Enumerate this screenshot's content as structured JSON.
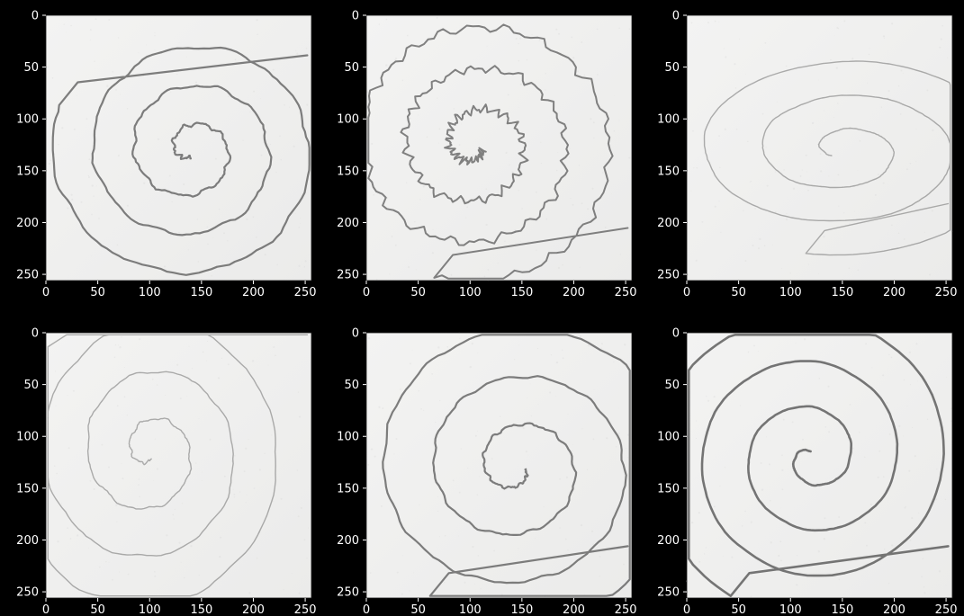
{
  "figure": {
    "background": "#000000",
    "text_color": "#ffffff",
    "paper_color": "#f0f0ef",
    "pencil_color": "#555555"
  },
  "panels": [
    {
      "name": "spiral-panel-1",
      "xticks": [
        "0",
        "50",
        "100",
        "150",
        "200",
        "250"
      ],
      "yticks": [
        "0",
        "50",
        "100",
        "150",
        "200",
        "250"
      ],
      "image_size": [
        256,
        256
      ],
      "content": "hand-drawn spiral (irregular, dark pencil)"
    },
    {
      "name": "spiral-panel-2",
      "xticks": [
        "0",
        "50",
        "100",
        "150",
        "200",
        "250"
      ],
      "yticks": [
        "0",
        "50",
        "100",
        "150",
        "200",
        "250"
      ],
      "image_size": [
        256,
        256
      ],
      "content": "hand-drawn spiral (jagged, tremulous)"
    },
    {
      "name": "spiral-panel-3",
      "xticks": [
        "0",
        "50",
        "100",
        "150",
        "200",
        "250"
      ],
      "yticks": [
        "0",
        "50",
        "100",
        "150",
        "200",
        "250"
      ],
      "image_size": [
        256,
        256
      ],
      "content": "hand-drawn spiral (smooth, light pencil)"
    },
    {
      "name": "spiral-panel-4",
      "xticks": [
        "0",
        "50",
        "100",
        "150",
        "200",
        "250"
      ],
      "yticks": [
        "0",
        "50",
        "100",
        "150",
        "200",
        "250"
      ],
      "image_size": [
        256,
        256
      ],
      "content": "hand-drawn spiral (faint, wobbly)"
    },
    {
      "name": "spiral-panel-5",
      "xticks": [
        "0",
        "50",
        "100",
        "150",
        "200",
        "250"
      ],
      "yticks": [
        "0",
        "50",
        "100",
        "150",
        "200",
        "250"
      ],
      "image_size": [
        256,
        256
      ],
      "content": "hand-drawn spiral (medium, slightly jagged)"
    },
    {
      "name": "spiral-panel-6",
      "xticks": [
        "0",
        "50",
        "100",
        "150",
        "200",
        "250"
      ],
      "yticks": [
        "0",
        "50",
        "100",
        "150",
        "200",
        "250"
      ],
      "image_size": [
        256,
        256
      ],
      "content": "hand-drawn spiral (smooth, dark pencil)"
    }
  ]
}
